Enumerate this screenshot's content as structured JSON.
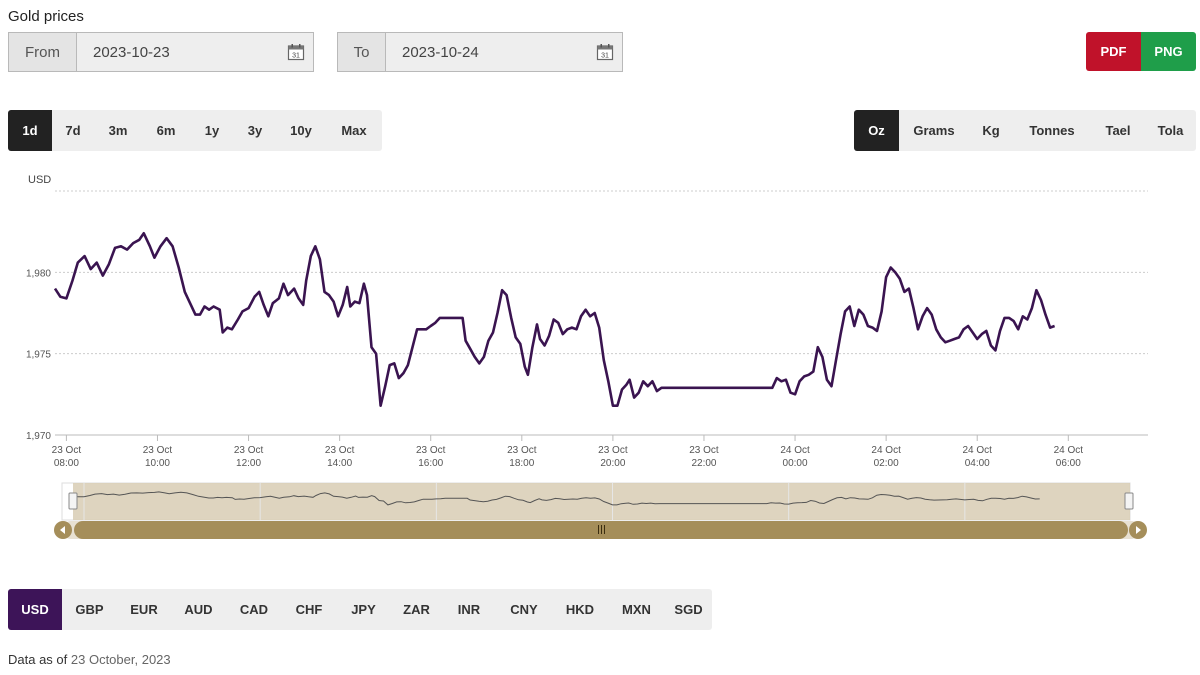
{
  "page": {
    "title": "Gold prices"
  },
  "range_picker": {
    "from_label": "From",
    "from_value": "2023-10-23",
    "to_label": "To",
    "to_value": "2023-10-24",
    "calendar_glyph": "31"
  },
  "export": {
    "pdf_label": "PDF",
    "png_label": "PNG",
    "pdf_color": "#c0122a",
    "png_color": "#1f9e4a"
  },
  "period_tabs": [
    {
      "label": "1d",
      "active": true
    },
    {
      "label": "7d"
    },
    {
      "label": "3m"
    },
    {
      "label": "6m"
    },
    {
      "label": "1y"
    },
    {
      "label": "3y"
    },
    {
      "label": "10y"
    },
    {
      "label": "Max"
    }
  ],
  "unit_tabs": [
    {
      "label": "Oz",
      "active": true
    },
    {
      "label": "Grams"
    },
    {
      "label": "Kg"
    },
    {
      "label": "Tonnes"
    },
    {
      "label": "Tael"
    },
    {
      "label": "Tola"
    }
  ],
  "currency_tabs": [
    {
      "label": "USD",
      "active": true
    },
    {
      "label": "GBP"
    },
    {
      "label": "EUR"
    },
    {
      "label": "AUD"
    },
    {
      "label": "CAD"
    },
    {
      "label": "CHF"
    },
    {
      "label": "JPY"
    },
    {
      "label": "ZAR"
    },
    {
      "label": "INR"
    },
    {
      "label": "CNY"
    },
    {
      "label": "HKD"
    },
    {
      "label": "MXN"
    },
    {
      "label": "SGD"
    }
  ],
  "footer": {
    "prefix": "Data as of",
    "date": "23 October, 2023"
  },
  "chart_data": {
    "type": "line",
    "ylabel": "USD",
    "ylim": [
      1970,
      1985
    ],
    "grid": true,
    "x_start": "2023-10-23 07:45",
    "x_end": "2023-10-24 07:45",
    "x_ticks": [
      {
        "time": "2023-10-23 08:00",
        "label1": "23 Oct",
        "label2": "08:00"
      },
      {
        "time": "2023-10-23 10:00",
        "label1": "23 Oct",
        "label2": "10:00"
      },
      {
        "time": "2023-10-23 12:00",
        "label1": "23 Oct",
        "label2": "12:00"
      },
      {
        "time": "2023-10-23 14:00",
        "label1": "23 Oct",
        "label2": "14:00"
      },
      {
        "time": "2023-10-23 16:00",
        "label1": "23 Oct",
        "label2": "16:00"
      },
      {
        "time": "2023-10-23 18:00",
        "label1": "23 Oct",
        "label2": "18:00"
      },
      {
        "time": "2023-10-23 20:00",
        "label1": "23 Oct",
        "label2": "20:00"
      },
      {
        "time": "2023-10-23 22:00",
        "label1": "23 Oct",
        "label2": "22:00"
      },
      {
        "time": "2023-10-24 00:00",
        "label1": "24 Oct",
        "label2": "00:00"
      },
      {
        "time": "2023-10-24 02:00",
        "label1": "24 Oct",
        "label2": "02:00"
      },
      {
        "time": "2023-10-24 04:00",
        "label1": "24 Oct",
        "label2": "04:00"
      },
      {
        "time": "2023-10-24 06:00",
        "label1": "24 Oct",
        "label2": "06:00"
      }
    ],
    "y_ticks": [
      {
        "value": 1970,
        "label": "1,970"
      },
      {
        "value": 1975,
        "label": "1,975"
      },
      {
        "value": 1980,
        "label": "1,980"
      }
    ],
    "line_color": "#3a1450",
    "series": [
      {
        "points": [
          [
            "2023-10-23 07:45",
            1979.0
          ],
          [
            "2023-10-23 07:52",
            1978.5
          ],
          [
            "2023-10-23 08:00",
            1978.4
          ],
          [
            "2023-10-23 08:08",
            1979.5
          ],
          [
            "2023-10-23 08:15",
            1980.6
          ],
          [
            "2023-10-23 08:24",
            1981.0
          ],
          [
            "2023-10-23 08:32",
            1980.2
          ],
          [
            "2023-10-23 08:40",
            1980.6
          ],
          [
            "2023-10-23 08:48",
            1979.8
          ],
          [
            "2023-10-23 08:56",
            1980.5
          ],
          [
            "2023-10-23 09:04",
            1981.5
          ],
          [
            "2023-10-23 09:12",
            1981.6
          ],
          [
            "2023-10-23 09:20",
            1981.4
          ],
          [
            "2023-10-23 09:28",
            1981.8
          ],
          [
            "2023-10-23 09:36",
            1982.0
          ],
          [
            "2023-10-23 09:42",
            1982.4
          ],
          [
            "2023-10-23 09:50",
            1981.6
          ],
          [
            "2023-10-23 09:56",
            1980.9
          ],
          [
            "2023-10-23 10:04",
            1981.6
          ],
          [
            "2023-10-23 10:12",
            1982.1
          ],
          [
            "2023-10-23 10:20",
            1981.6
          ],
          [
            "2023-10-23 10:28",
            1980.3
          ],
          [
            "2023-10-23 10:36",
            1978.8
          ],
          [
            "2023-10-23 10:44",
            1978.0
          ],
          [
            "2023-10-23 10:50",
            1977.4
          ],
          [
            "2023-10-23 10:56",
            1977.4
          ],
          [
            "2023-10-23 11:02",
            1977.9
          ],
          [
            "2023-10-23 11:08",
            1977.7
          ],
          [
            "2023-10-23 11:14",
            1977.9
          ],
          [
            "2023-10-23 11:22",
            1977.7
          ],
          [
            "2023-10-23 11:26",
            1976.3
          ],
          [
            "2023-10-23 11:32",
            1976.6
          ],
          [
            "2023-10-23 11:38",
            1976.5
          ],
          [
            "2023-10-23 11:46",
            1977.1
          ],
          [
            "2023-10-23 11:52",
            1977.6
          ],
          [
            "2023-10-23 12:00",
            1977.8
          ],
          [
            "2023-10-23 12:08",
            1978.5
          ],
          [
            "2023-10-23 12:14",
            1978.8
          ],
          [
            "2023-10-23 12:20",
            1978.0
          ],
          [
            "2023-10-23 12:26",
            1977.3
          ],
          [
            "2023-10-23 12:32",
            1978.1
          ],
          [
            "2023-10-23 12:40",
            1978.4
          ],
          [
            "2023-10-23 12:46",
            1979.3
          ],
          [
            "2023-10-23 12:52",
            1978.6
          ],
          [
            "2023-10-23 13:00",
            1979.0
          ],
          [
            "2023-10-23 13:06",
            1978.4
          ],
          [
            "2023-10-23 13:12",
            1978.0
          ],
          [
            "2023-10-23 13:16",
            1979.5
          ],
          [
            "2023-10-23 13:22",
            1981.0
          ],
          [
            "2023-10-23 13:28",
            1981.6
          ],
          [
            "2023-10-23 13:34",
            1980.8
          ],
          [
            "2023-10-23 13:40",
            1978.8
          ],
          [
            "2023-10-23 13:46",
            1978.6
          ],
          [
            "2023-10-23 13:52",
            1978.2
          ],
          [
            "2023-10-23 13:58",
            1977.3
          ],
          [
            "2023-10-23 14:04",
            1978.0
          ],
          [
            "2023-10-23 14:10",
            1979.1
          ],
          [
            "2023-10-23 14:14",
            1977.9
          ],
          [
            "2023-10-23 14:20",
            1978.2
          ],
          [
            "2023-10-23 14:26",
            1978.1
          ],
          [
            "2023-10-23 14:32",
            1979.3
          ],
          [
            "2023-10-23 14:36",
            1978.6
          ],
          [
            "2023-10-23 14:42",
            1975.4
          ],
          [
            "2023-10-23 14:48",
            1975.0
          ],
          [
            "2023-10-23 14:54",
            1971.8
          ],
          [
            "2023-10-23 15:00",
            1973.0
          ],
          [
            "2023-10-23 15:06",
            1974.3
          ],
          [
            "2023-10-23 15:12",
            1974.4
          ],
          [
            "2023-10-23 15:18",
            1973.5
          ],
          [
            "2023-10-23 15:24",
            1973.8
          ],
          [
            "2023-10-23 15:30",
            1974.3
          ],
          [
            "2023-10-23 15:36",
            1975.4
          ],
          [
            "2023-10-23 15:42",
            1976.5
          ],
          [
            "2023-10-23 15:48",
            1976.5
          ],
          [
            "2023-10-23 15:54",
            1976.5
          ],
          [
            "2023-10-23 16:00",
            1976.7
          ],
          [
            "2023-10-23 16:06",
            1976.9
          ],
          [
            "2023-10-23 16:12",
            1977.2
          ],
          [
            "2023-10-23 16:18",
            1977.2
          ],
          [
            "2023-10-23 16:24",
            1977.2
          ],
          [
            "2023-10-23 16:30",
            1977.2
          ],
          [
            "2023-10-23 16:36",
            1977.2
          ],
          [
            "2023-10-23 16:42",
            1977.2
          ],
          [
            "2023-10-23 16:46",
            1975.8
          ],
          [
            "2023-10-23 16:52",
            1975.3
          ],
          [
            "2023-10-23 16:58",
            1974.8
          ],
          [
            "2023-10-23 17:04",
            1974.4
          ],
          [
            "2023-10-23 17:10",
            1974.8
          ],
          [
            "2023-10-23 17:16",
            1975.8
          ],
          [
            "2023-10-23 17:22",
            1976.3
          ],
          [
            "2023-10-23 17:28",
            1977.5
          ],
          [
            "2023-10-23 17:34",
            1978.9
          ],
          [
            "2023-10-23 17:40",
            1978.6
          ],
          [
            "2023-10-23 17:46",
            1977.2
          ],
          [
            "2023-10-23 17:52",
            1976.0
          ],
          [
            "2023-10-23 17:58",
            1975.6
          ],
          [
            "2023-10-23 18:04",
            1974.2
          ],
          [
            "2023-10-23 18:08",
            1973.7
          ],
          [
            "2023-10-23 18:14",
            1975.4
          ],
          [
            "2023-10-23 18:20",
            1976.8
          ],
          [
            "2023-10-23 18:24",
            1975.9
          ],
          [
            "2023-10-23 18:30",
            1975.5
          ],
          [
            "2023-10-23 18:36",
            1976.1
          ],
          [
            "2023-10-23 18:42",
            1977.1
          ],
          [
            "2023-10-23 18:48",
            1976.9
          ],
          [
            "2023-10-23 18:54",
            1976.2
          ],
          [
            "2023-10-23 19:00",
            1976.5
          ],
          [
            "2023-10-23 19:06",
            1976.6
          ],
          [
            "2023-10-23 19:12",
            1976.5
          ],
          [
            "2023-10-23 19:18",
            1977.3
          ],
          [
            "2023-10-23 19:24",
            1977.7
          ],
          [
            "2023-10-23 19:30",
            1977.3
          ],
          [
            "2023-10-23 19:36",
            1977.5
          ],
          [
            "2023-10-23 19:42",
            1976.6
          ],
          [
            "2023-10-23 19:48",
            1974.6
          ],
          [
            "2023-10-23 19:54",
            1973.3
          ],
          [
            "2023-10-23 20:00",
            1971.8
          ],
          [
            "2023-10-23 20:06",
            1971.8
          ],
          [
            "2023-10-23 20:12",
            1972.8
          ],
          [
            "2023-10-23 20:18",
            1973.1
          ],
          [
            "2023-10-23 20:22",
            1973.4
          ],
          [
            "2023-10-23 20:28",
            1972.3
          ],
          [
            "2023-10-23 20:34",
            1972.6
          ],
          [
            "2023-10-23 20:40",
            1973.3
          ],
          [
            "2023-10-23 20:46",
            1973.0
          ],
          [
            "2023-10-23 20:52",
            1973.3
          ],
          [
            "2023-10-23 20:58",
            1972.7
          ],
          [
            "2023-10-23 21:04",
            1972.9
          ],
          [
            "2023-10-23 21:10",
            1972.9
          ],
          [
            "2023-10-23 22:00",
            1972.9
          ],
          [
            "2023-10-23 23:00",
            1972.9
          ],
          [
            "2023-10-23 23:30",
            1972.9
          ],
          [
            "2023-10-23 23:36",
            1973.5
          ],
          [
            "2023-10-23 23:42",
            1973.3
          ],
          [
            "2023-10-23 23:48",
            1973.4
          ],
          [
            "2023-10-23 23:54",
            1972.6
          ],
          [
            "2023-10-24 00:00",
            1972.5
          ],
          [
            "2023-10-24 00:06",
            1973.3
          ],
          [
            "2023-10-24 00:12",
            1973.6
          ],
          [
            "2023-10-24 00:18",
            1973.7
          ],
          [
            "2023-10-24 00:24",
            1973.9
          ],
          [
            "2023-10-24 00:30",
            1975.4
          ],
          [
            "2023-10-24 00:36",
            1974.8
          ],
          [
            "2023-10-24 00:42",
            1973.4
          ],
          [
            "2023-10-24 00:48",
            1973.0
          ],
          [
            "2023-10-24 00:54",
            1974.6
          ],
          [
            "2023-10-24 01:00",
            1976.2
          ],
          [
            "2023-10-24 01:06",
            1977.6
          ],
          [
            "2023-10-24 01:12",
            1977.9
          ],
          [
            "2023-10-24 01:18",
            1976.7
          ],
          [
            "2023-10-24 01:24",
            1977.7
          ],
          [
            "2023-10-24 01:30",
            1977.4
          ],
          [
            "2023-10-24 01:36",
            1976.7
          ],
          [
            "2023-10-24 01:42",
            1976.6
          ],
          [
            "2023-10-24 01:48",
            1976.4
          ],
          [
            "2023-10-24 01:54",
            1977.6
          ],
          [
            "2023-10-24 02:00",
            1979.7
          ],
          [
            "2023-10-24 02:06",
            1980.3
          ],
          [
            "2023-10-24 02:12",
            1980.0
          ],
          [
            "2023-10-24 02:18",
            1979.6
          ],
          [
            "2023-10-24 02:24",
            1978.8
          ],
          [
            "2023-10-24 02:30",
            1979.0
          ],
          [
            "2023-10-24 02:36",
            1977.8
          ],
          [
            "2023-10-24 02:42",
            1976.5
          ],
          [
            "2023-10-24 02:48",
            1977.3
          ],
          [
            "2023-10-24 02:54",
            1977.8
          ],
          [
            "2023-10-24 03:00",
            1977.4
          ],
          [
            "2023-10-24 03:06",
            1976.5
          ],
          [
            "2023-10-24 03:12",
            1976.0
          ],
          [
            "2023-10-24 03:18",
            1975.7
          ],
          [
            "2023-10-24 03:24",
            1975.8
          ],
          [
            "2023-10-24 03:30",
            1975.9
          ],
          [
            "2023-10-24 03:36",
            1976.0
          ],
          [
            "2023-10-24 03:42",
            1976.5
          ],
          [
            "2023-10-24 03:48",
            1976.7
          ],
          [
            "2023-10-24 03:54",
            1976.3
          ],
          [
            "2023-10-24 04:00",
            1975.9
          ],
          [
            "2023-10-24 04:06",
            1976.2
          ],
          [
            "2023-10-24 04:12",
            1976.4
          ],
          [
            "2023-10-24 04:18",
            1975.5
          ],
          [
            "2023-10-24 04:24",
            1975.2
          ],
          [
            "2023-10-24 04:30",
            1976.4
          ],
          [
            "2023-10-24 04:36",
            1977.2
          ],
          [
            "2023-10-24 04:42",
            1977.2
          ],
          [
            "2023-10-24 04:48",
            1977.0
          ],
          [
            "2023-10-24 04:54",
            1976.5
          ],
          [
            "2023-10-24 05:00",
            1977.3
          ],
          [
            "2023-10-24 05:06",
            1977.1
          ],
          [
            "2023-10-24 05:12",
            1977.8
          ],
          [
            "2023-10-24 05:18",
            1978.9
          ],
          [
            "2023-10-24 05:24",
            1978.3
          ],
          [
            "2023-10-24 05:30",
            1977.4
          ],
          [
            "2023-10-24 05:36",
            1976.6
          ],
          [
            "2023-10-24 05:42",
            1976.7
          ]
        ]
      }
    ]
  }
}
